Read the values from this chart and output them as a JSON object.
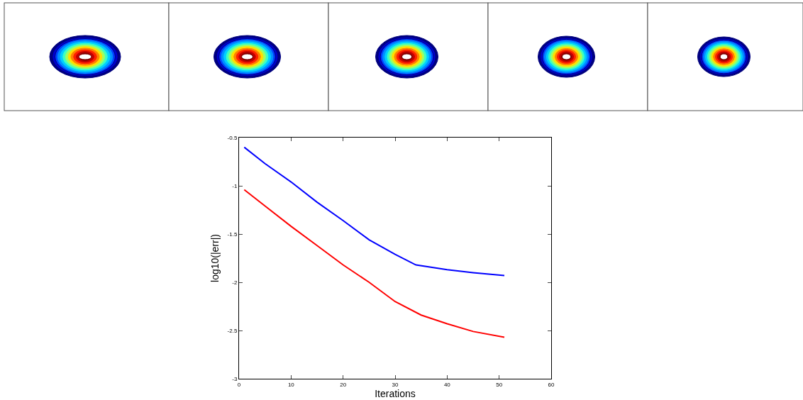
{
  "chart_data": {
    "type": "line",
    "xlabel": "Iterations",
    "ylabel": "log10(|err|)",
    "xlim": [
      0,
      60
    ],
    "xticks": [
      0,
      10,
      20,
      30,
      40,
      50,
      60
    ],
    "ylim": [
      -3,
      -0.5
    ],
    "yticks": [
      -3,
      -2.5,
      -2,
      -1.5,
      -1,
      -0.5
    ],
    "grid": false,
    "marker": "none",
    "line_style": "solid",
    "series": [
      {
        "color": "#0000ff",
        "x": [
          1,
          5,
          10,
          15,
          20,
          25,
          30,
          34,
          40,
          45,
          51
        ],
        "values": [
          -0.6,
          -0.77,
          -0.96,
          -1.17,
          -1.36,
          -1.56,
          -1.71,
          -1.82,
          -1.87,
          -1.9,
          -1.93
        ]
      },
      {
        "color": "#ff0000",
        "x": [
          1,
          5,
          10,
          15,
          20,
          25,
          30,
          35,
          40,
          45,
          51
        ],
        "values": [
          -1.04,
          -1.21,
          -1.42,
          -1.62,
          -1.82,
          -2.0,
          -2.2,
          -2.34,
          -2.43,
          -2.51,
          -2.57
        ]
      }
    ]
  }
}
